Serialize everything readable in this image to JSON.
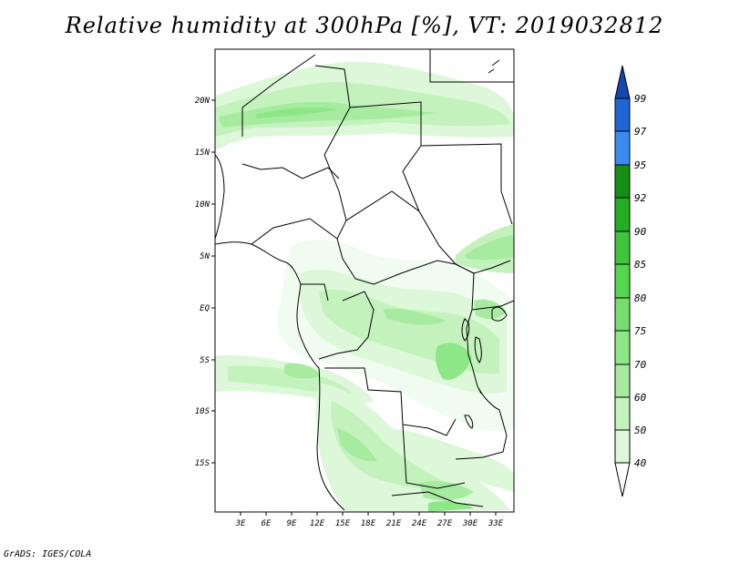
{
  "title": "Relative humidity at 300hPa [%], VT: 2019032812",
  "credit": "GrADS: IGES/COLA",
  "map": {
    "variable": "Relative humidity",
    "level": "300hPa",
    "units": "%",
    "valid_time": "2019032812",
    "lon_range": [
      0,
      34
    ],
    "lat_range": [
      -20,
      25
    ],
    "lon_ticks": [
      "3E",
      "6E",
      "9E",
      "12E",
      "15E",
      "18E",
      "21E",
      "24E",
      "27E",
      "30E",
      "33E"
    ],
    "lat_ticks": [
      "20N",
      "15N",
      "10N",
      "5N",
      "EQ",
      "5S",
      "10S",
      "15S"
    ]
  },
  "colorbar": {
    "levels": [
      "40",
      "50",
      "60",
      "70",
      "75",
      "80",
      "85",
      "90",
      "92",
      "95",
      "97",
      "99"
    ],
    "colors": [
      "#f0fcef",
      "#dcf8d8",
      "#c4f2bd",
      "#a6eba0",
      "#8de786",
      "#74df6c",
      "#55d64f",
      "#3fc43a",
      "#22ad22",
      "#148f14",
      "#3a8bf0",
      "#1e66d6",
      "#1448b0"
    ]
  }
}
